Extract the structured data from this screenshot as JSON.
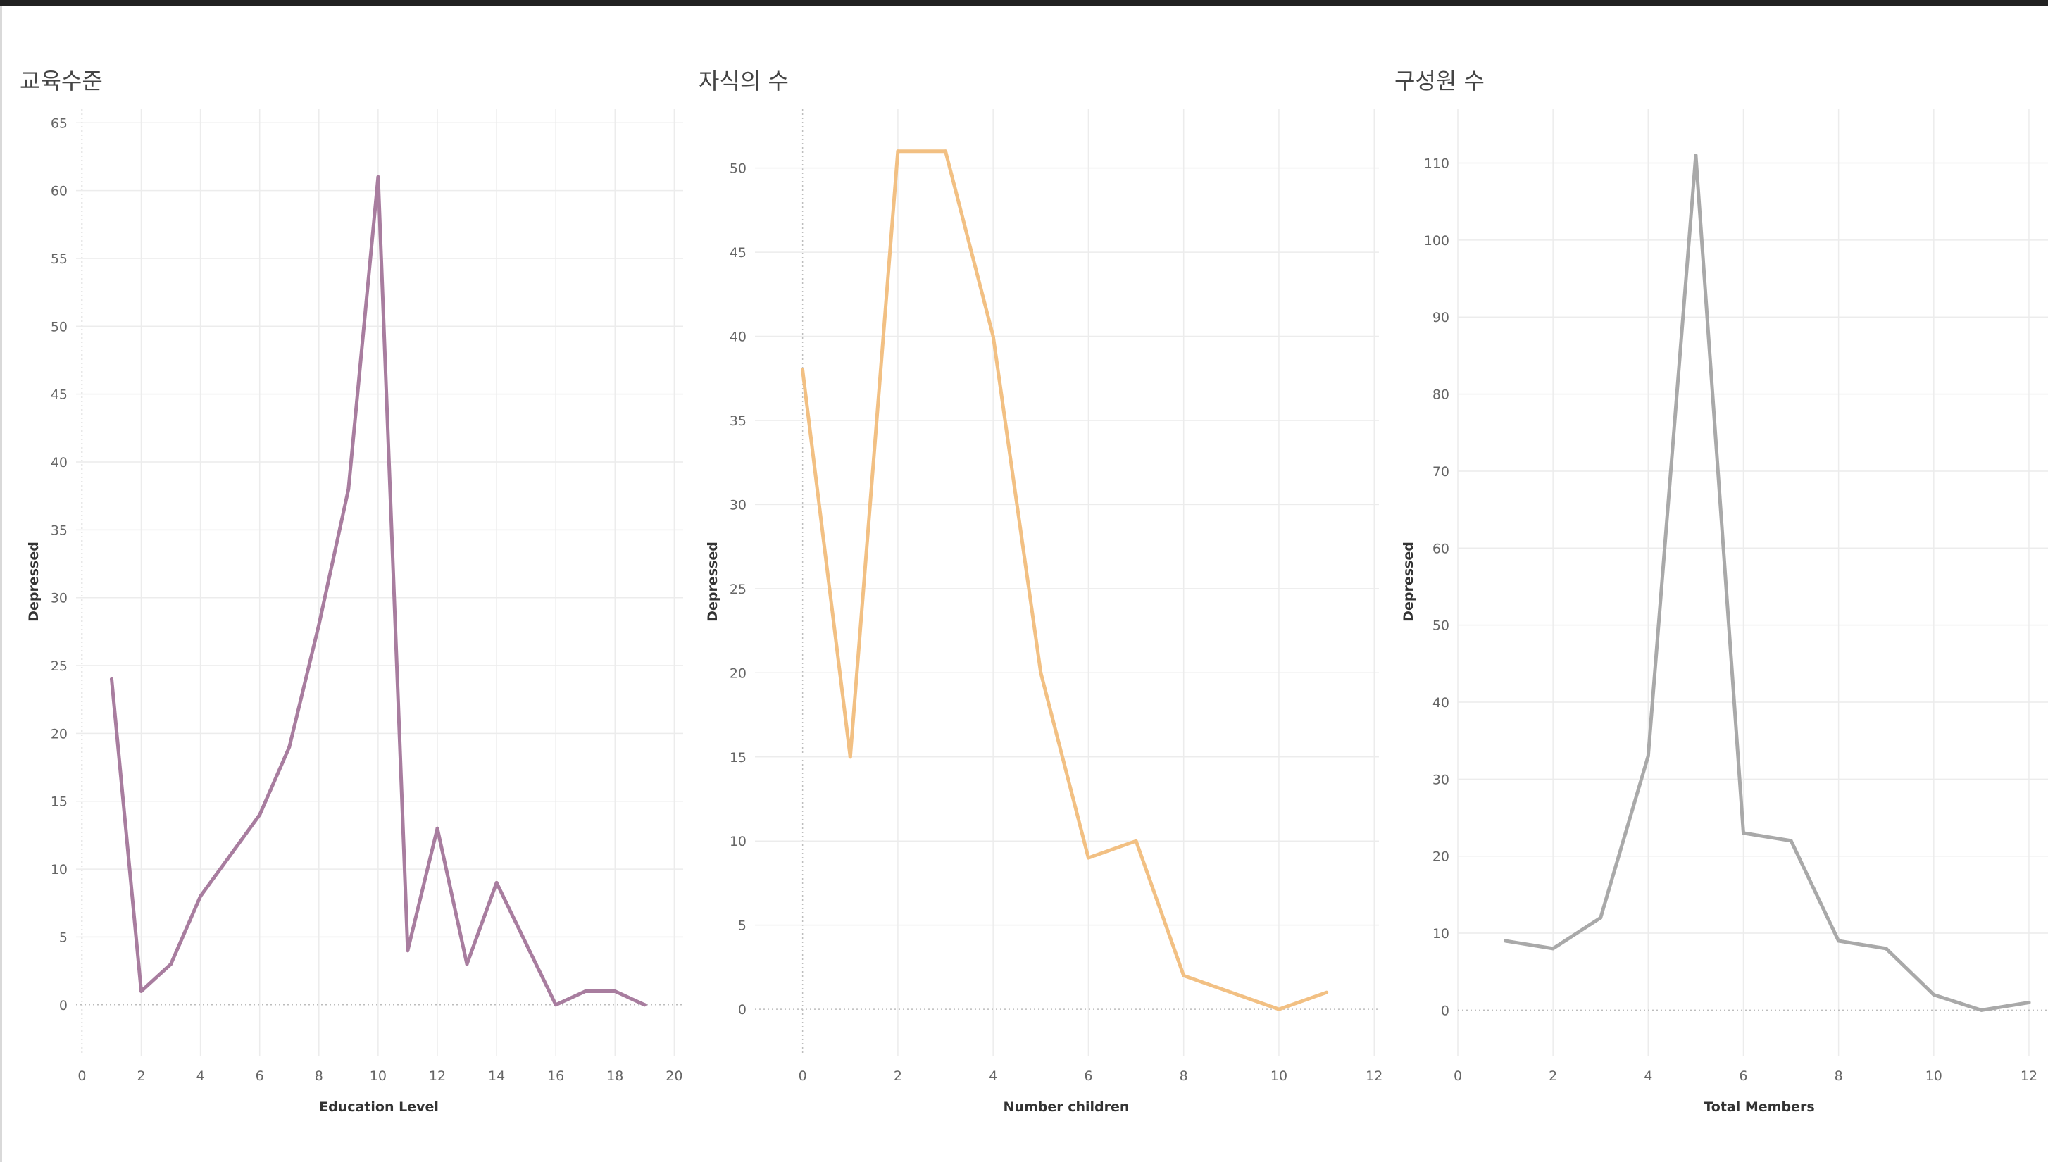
{
  "chart_data": [
    {
      "type": "line",
      "title": "교육수준",
      "xlabel": "Education Level",
      "ylabel": "Depressed",
      "xlim": [
        -0.2,
        20.3
      ],
      "ylim": [
        -3.8,
        66
      ],
      "xticks": [
        0,
        2,
        4,
        6,
        8,
        10,
        12,
        14,
        16,
        18,
        20
      ],
      "yticks": [
        0,
        5,
        10,
        15,
        20,
        25,
        30,
        35,
        40,
        45,
        50,
        55,
        60,
        65
      ],
      "grid": true,
      "color": "#a87d9f",
      "x": [
        1,
        2,
        3,
        4,
        5,
        6,
        7,
        8,
        9,
        10,
        11,
        12,
        13,
        14,
        15,
        16,
        17,
        18,
        19
      ],
      "y": [
        24,
        1,
        3,
        8,
        11,
        14,
        19,
        28,
        38,
        61,
        4,
        13,
        3,
        9,
        4.5,
        0,
        1,
        1,
        0
      ]
    },
    {
      "type": "line",
      "title": "자식의 수",
      "xlabel": "Number children",
      "ylabel": "Depressed",
      "xlim": [
        -1,
        12.1
      ],
      "ylim": [
        -2.8,
        53.5
      ],
      "xticks": [
        0,
        2,
        4,
        6,
        8,
        10,
        12
      ],
      "yticks": [
        0,
        5,
        10,
        15,
        20,
        25,
        30,
        35,
        40,
        45,
        50
      ],
      "grid": true,
      "color": "#f2c083",
      "x": [
        0,
        1,
        2,
        3,
        4,
        5,
        6,
        7,
        8,
        9,
        10,
        11
      ],
      "y": [
        38,
        15,
        51,
        51,
        40,
        20,
        9,
        10,
        2,
        1,
        0,
        1
      ]
    },
    {
      "type": "line",
      "title": "구성원 수",
      "xlabel": "Total Members",
      "ylabel": "Depressed",
      "xlim": [
        0,
        12.4
      ],
      "ylim": [
        -6,
        117
      ],
      "xticks": [
        0,
        2,
        4,
        6,
        8,
        10,
        12
      ],
      "yticks": [
        0,
        10,
        20,
        30,
        40,
        50,
        60,
        70,
        80,
        90,
        100,
        110
      ],
      "grid": true,
      "color": "#a9a9a9",
      "x": [
        1,
        2,
        3,
        4,
        5,
        6,
        7,
        8,
        9,
        10,
        11,
        12
      ],
      "y": [
        9,
        8,
        12,
        33,
        111,
        23,
        22,
        9,
        8,
        2,
        0,
        1
      ]
    }
  ]
}
